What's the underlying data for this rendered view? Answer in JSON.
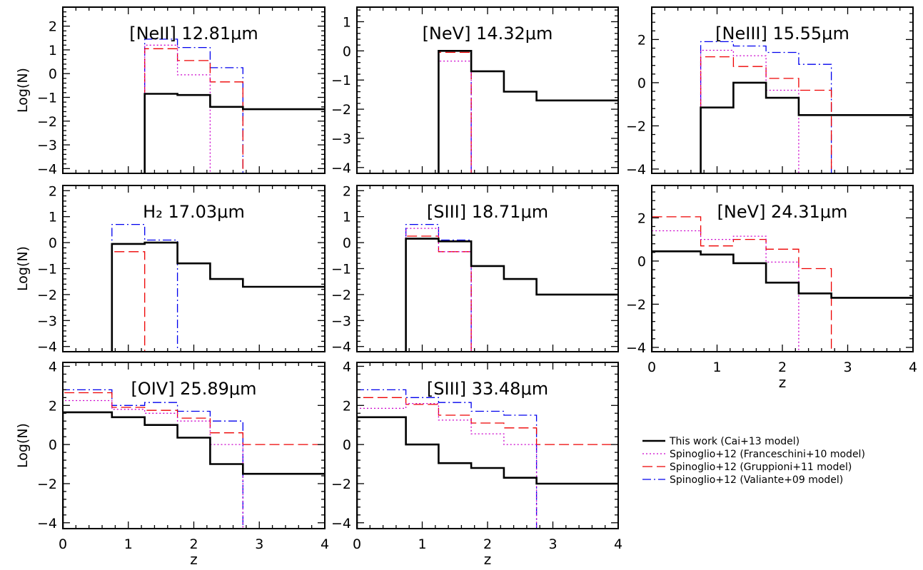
{
  "figure": {
    "series_styles": [
      {
        "key": "cai",
        "label": "This work (Cai+13 model)",
        "color": "#000000",
        "dash": "",
        "width": 2.6
      },
      {
        "key": "franceschini",
        "label": "Spinoglio+12 (Franceschini+10 model)",
        "color": "#cc00cc",
        "dash": "2,3",
        "width": 1.3
      },
      {
        "key": "gruppioni",
        "label": "Spinoglio+12 (Gruppioni+11 model)",
        "color": "#ee0000",
        "dash": "14,6",
        "width": 1.3
      },
      {
        "key": "valiante",
        "label": "Spinoglio+12 (Valiante+09 model)",
        "color": "#0000ee",
        "dash": "12,4,2,4",
        "width": 1.3
      }
    ]
  },
  "chart_data": [
    {
      "type": "line",
      "title": "[NeII] 12.81μm",
      "xlabel": "",
      "ylabel": "Log(N)",
      "xlim": [
        0,
        4
      ],
      "ylim": [
        -4.2,
        2.8
      ],
      "xticks": [],
      "yticks": [
        -4,
        -3,
        -2,
        -1,
        0,
        1,
        2
      ],
      "bin_edges": [
        0.75,
        1.25,
        1.75,
        2.25,
        2.75,
        4
      ],
      "series": [
        {
          "key": "cai",
          "name": "This work (Cai+13 model)",
          "values": [
            null,
            -0.85,
            -0.9,
            -1.4,
            -1.5
          ]
        },
        {
          "key": "franceschini",
          "name": "Spinoglio+12 (Franceschini+10 model)",
          "values": [
            null,
            1.2,
            -0.05,
            null,
            null
          ]
        },
        {
          "key": "gruppioni",
          "name": "Spinoglio+12 (Gruppioni+11 model)",
          "values": [
            null,
            1.05,
            0.55,
            -0.35,
            null
          ]
        },
        {
          "key": "valiante",
          "name": "Spinoglio+12 (Valiante+09 model)",
          "values": [
            null,
            1.45,
            1.1,
            0.25,
            null
          ]
        }
      ]
    },
    {
      "type": "line",
      "title": "[NeV] 14.32μm",
      "xlabel": "",
      "ylabel": "",
      "xlim": [
        0,
        4
      ],
      "ylim": [
        -4.2,
        1.5
      ],
      "xticks": [],
      "yticks": [
        -4,
        -3,
        -2,
        -1,
        0,
        1
      ],
      "bin_edges": [
        0.75,
        1.25,
        1.75,
        2.25,
        2.75,
        4
      ],
      "series": [
        {
          "key": "cai",
          "name": "This work (Cai+13 model)",
          "values": [
            null,
            0.0,
            -0.7,
            -1.4,
            -1.7
          ]
        },
        {
          "key": "franceschini",
          "name": "Spinoglio+12 (Franceschini+10 model)",
          "values": [
            null,
            -0.35,
            null,
            null,
            null
          ]
        },
        {
          "key": "gruppioni",
          "name": "Spinoglio+12 (Gruppioni+11 model)",
          "values": [
            null,
            -0.05,
            null,
            null,
            null
          ]
        },
        {
          "key": "valiante",
          "name": "Spinoglio+12 (Valiante+09 model)",
          "values": [
            null,
            0.0,
            null,
            null,
            null
          ]
        }
      ]
    },
    {
      "type": "line",
      "title": "[NeIII] 15.55μm",
      "xlabel": "",
      "ylabel": "",
      "xlim": [
        0,
        4
      ],
      "ylim": [
        -4.2,
        3.5
      ],
      "xticks": [],
      "yticks": [
        -4,
        -2,
        0,
        2
      ],
      "bin_edges": [
        0.75,
        1.25,
        1.75,
        2.25,
        2.75,
        4
      ],
      "series": [
        {
          "key": "cai",
          "name": "This work (Cai+13 model)",
          "values": [
            -1.15,
            0.0,
            -0.7,
            -1.5,
            -1.5
          ]
        },
        {
          "key": "franceschini",
          "name": "Spinoglio+12 (Franceschini+10 model)",
          "values": [
            1.5,
            1.25,
            -0.35,
            null,
            null
          ]
        },
        {
          "key": "gruppioni",
          "name": "Spinoglio+12 (Gruppioni+11 model)",
          "values": [
            1.2,
            0.75,
            0.2,
            -0.35,
            null
          ]
        },
        {
          "key": "valiante",
          "name": "Spinoglio+12 (Valiante+09 model)",
          "values": [
            1.9,
            1.7,
            1.4,
            0.85,
            null
          ]
        }
      ]
    },
    {
      "type": "line",
      "title": "H₂ 17.03μm",
      "xlabel": "",
      "ylabel": "Log(N)",
      "xlim": [
        0,
        4
      ],
      "ylim": [
        -4.2,
        2.2
      ],
      "xticks": [],
      "yticks": [
        -4,
        -3,
        -2,
        -1,
        0,
        1,
        2
      ],
      "bin_edges": [
        0.75,
        1.25,
        1.75,
        2.25,
        2.75,
        4
      ],
      "series": [
        {
          "key": "cai",
          "name": "This work (Cai+13 model)",
          "values": [
            -0.05,
            0.0,
            -0.8,
            -1.4,
            -1.7
          ]
        },
        {
          "key": "franceschini",
          "name": "Spinoglio+12 (Franceschini+10 model)",
          "values": [
            null,
            null,
            null,
            null,
            null
          ]
        },
        {
          "key": "gruppioni",
          "name": "Spinoglio+12 (Gruppioni+11 model)",
          "values": [
            -0.35,
            null,
            null,
            null,
            null
          ]
        },
        {
          "key": "valiante",
          "name": "Spinoglio+12 (Valiante+09 model)",
          "values": [
            0.7,
            0.1,
            null,
            null,
            null
          ]
        }
      ]
    },
    {
      "type": "line",
      "title": "[SIII] 18.71μm",
      "xlabel": "",
      "ylabel": "",
      "xlim": [
        0,
        4
      ],
      "ylim": [
        -4.2,
        2.2
      ],
      "xticks": [],
      "yticks": [
        -4,
        -3,
        -2,
        -1,
        0,
        1,
        2
      ],
      "bin_edges": [
        0.75,
        1.25,
        1.75,
        2.25,
        2.75,
        4
      ],
      "series": [
        {
          "key": "cai",
          "name": "This work (Cai+13 model)",
          "values": [
            0.15,
            0.05,
            -0.9,
            -1.4,
            -2.0
          ]
        },
        {
          "key": "franceschini",
          "name": "Spinoglio+12 (Franceschini+10 model)",
          "values": [
            0.55,
            -0.35,
            null,
            null,
            null
          ]
        },
        {
          "key": "gruppioni",
          "name": "Spinoglio+12 (Gruppioni+11 model)",
          "values": [
            0.25,
            -0.35,
            null,
            null,
            null
          ]
        },
        {
          "key": "valiante",
          "name": "Spinoglio+12 (Valiante+09 model)",
          "values": [
            0.7,
            0.1,
            null,
            null,
            null
          ]
        }
      ]
    },
    {
      "type": "line",
      "title": "[NeV] 24.31μm",
      "xlabel": "z",
      "ylabel": "",
      "xlim": [
        0,
        4
      ],
      "ylim": [
        -4.2,
        3.5
      ],
      "xticks": [
        0,
        1,
        2,
        3,
        4
      ],
      "yticks": [
        -4,
        -2,
        0,
        2
      ],
      "bin_edges": [
        0,
        0.75,
        1.25,
        1.75,
        2.25,
        2.75,
        4
      ],
      "series": [
        {
          "key": "cai",
          "name": "This work (Cai+13 model)",
          "values": [
            0.45,
            0.3,
            -0.1,
            -1.0,
            -1.5,
            -1.7
          ]
        },
        {
          "key": "franceschini",
          "name": "Spinoglio+12 (Franceschini+10 model)",
          "values": [
            1.4,
            1.0,
            1.15,
            -0.05,
            null,
            null
          ]
        },
        {
          "key": "gruppioni",
          "name": "Spinoglio+12 (Gruppioni+11 model)",
          "values": [
            2.05,
            0.7,
            1.0,
            0.55,
            -0.35,
            null
          ]
        },
        {
          "key": "valiante",
          "name": "Spinoglio+12 (Valiante+09 model)",
          "values": [
            null,
            null,
            null,
            null,
            null,
            null
          ]
        }
      ]
    },
    {
      "type": "line",
      "title": "[OIV] 25.89μm",
      "xlabel": "z",
      "ylabel": "Log(N)",
      "xlim": [
        0,
        4
      ],
      "ylim": [
        -4.3,
        4.2
      ],
      "xticks": [
        0,
        1,
        2,
        3,
        4
      ],
      "yticks": [
        -4,
        -2,
        0,
        2,
        4
      ],
      "bin_edges": [
        0,
        0.75,
        1.25,
        1.75,
        2.25,
        2.75,
        4
      ],
      "series": [
        {
          "key": "cai",
          "name": "This work (Cai+13 model)",
          "values": [
            1.65,
            1.4,
            1.0,
            0.35,
            -1.0,
            -1.5
          ]
        },
        {
          "key": "franceschini",
          "name": "Spinoglio+12 (Franceschini+10 model)",
          "values": [
            2.25,
            1.8,
            1.6,
            1.2,
            0.0,
            null
          ]
        },
        {
          "key": "gruppioni",
          "name": "Spinoglio+12 (Gruppioni+11 model)",
          "values": [
            2.65,
            1.9,
            1.75,
            1.35,
            0.6,
            0.0
          ]
        },
        {
          "key": "valiante",
          "name": "Spinoglio+12 (Valiante+09 model)",
          "values": [
            2.8,
            2.0,
            2.15,
            1.7,
            1.2,
            null
          ]
        }
      ]
    },
    {
      "type": "line",
      "title": "[SIII] 33.48μm",
      "xlabel": "z",
      "ylabel": "",
      "xlim": [
        0,
        4
      ],
      "ylim": [
        -4.3,
        4.2
      ],
      "xticks": [
        0,
        1,
        2,
        3,
        4
      ],
      "yticks": [
        -4,
        -2,
        0,
        2,
        4
      ],
      "bin_edges": [
        0,
        0.75,
        1.25,
        1.75,
        2.25,
        2.75,
        4
      ],
      "series": [
        {
          "key": "cai",
          "name": "This work (Cai+13 model)",
          "values": [
            1.4,
            0.0,
            -0.95,
            -1.2,
            -1.7,
            -2.0
          ]
        },
        {
          "key": "franceschini",
          "name": "Spinoglio+12 (Franceschini+10 model)",
          "values": [
            1.85,
            2.1,
            1.25,
            0.55,
            0.0,
            null
          ]
        },
        {
          "key": "gruppioni",
          "name": "Spinoglio+12 (Gruppioni+11 model)",
          "values": [
            2.4,
            2.05,
            1.5,
            1.1,
            0.85,
            0.0
          ]
        },
        {
          "key": "valiante",
          "name": "Spinoglio+12 (Valiante+09 model)",
          "values": [
            2.8,
            2.4,
            2.15,
            1.7,
            1.5,
            null
          ]
        }
      ]
    }
  ]
}
